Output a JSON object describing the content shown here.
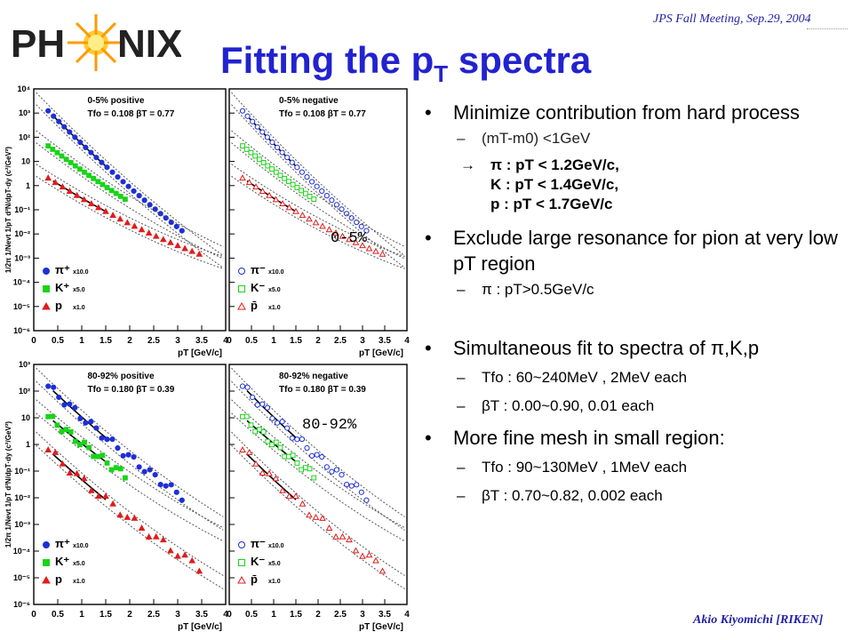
{
  "header": {
    "logo_text": "PHENIX",
    "conference": "JPS Fall Meeting, Sep.29, 2004",
    "title_main": "Fitting the p",
    "title_sub": "T",
    "title_tail": " spectra"
  },
  "footer": {
    "author": "Akio Kiyomichi [RIKEN]"
  },
  "bullets": {
    "b1": "Minimize contribution from hard process",
    "b1_sub1": "(mT-m0) <1GeV",
    "b1_arrow": "→",
    "b1_sub2_l1": "π : pT < 1.2GeV/c,",
    "b1_sub2_l2": "K : pT < 1.4GeV/c,",
    "b1_sub2_l3": "p : pT < 1.7GeV/c",
    "b2": "Exclude large resonance for pion at very low pT region",
    "b2_sub1": "π : pT>0.5GeV/c",
    "b3": "Simultaneous fit to spectra of π,K,p",
    "b3_sub1": "Tfo : 60~240MeV , 2MeV each",
    "b3_sub2": "βT : 0.00~0.90, 0.01 each",
    "b4": "More fine mesh in small region:",
    "b4_sub1": "Tfo : 90~130MeV , 1MeV each",
    "b4_sub2": "βT : 0.70~0.82, 0.002 each"
  },
  "plots": {
    "ylabel": "1/2π 1/Nevt 1/pT d²N/dpT·dy (c²/GeV²)",
    "xlabel": "pT [GeV/c]",
    "xticks": [
      "0",
      "0.5",
      "1",
      "1.5",
      "2",
      "2.5",
      "3",
      "3.5",
      "4"
    ],
    "yticks_top": [
      "10⁴",
      "10³",
      "10²",
      "10",
      "1",
      "10⁻¹",
      "10⁻²",
      "10⁻³",
      "10⁻⁴",
      "10⁻⁵",
      "10⁻⁶"
    ],
    "yticks_bottom": [
      "10³",
      "10²",
      "10",
      "1",
      "10⁻¹",
      "10⁻²",
      "10⁻³",
      "10⁻⁴",
      "10⁻⁵",
      "10⁻⁶"
    ],
    "label_0_5": "0-5%",
    "label_80_92": "80-92%",
    "panels": [
      {
        "head": "0-5%  positive",
        "params": "Tfo = 0.108   βT = 0.77",
        "legend": [
          {
            "sym": "π⁺",
            "scale": "x10.0"
          },
          {
            "sym": "K⁺",
            "scale": "x5.0"
          },
          {
            "sym": "p",
            "scale": "x1.0"
          }
        ]
      },
      {
        "head": "0-5%  negative",
        "params": "Tfo = 0.108   βT = 0.77",
        "legend": [
          {
            "sym": "π⁻",
            "scale": "x10.0"
          },
          {
            "sym": "K⁻",
            "scale": "x5.0"
          },
          {
            "sym": "p̄",
            "scale": "x1.0"
          }
        ]
      },
      {
        "head": "80-92%  positive",
        "params": "Tfo = 0.180   βT = 0.39",
        "legend": [
          {
            "sym": "π⁺",
            "scale": "x10.0"
          },
          {
            "sym": "K⁺",
            "scale": "x5.0"
          },
          {
            "sym": "p",
            "scale": "x1.0"
          }
        ]
      },
      {
        "head": "80-92%  negative",
        "params": "Tfo = 0.180   βT = 0.39",
        "legend": [
          {
            "sym": "π⁻",
            "scale": "x10.0"
          },
          {
            "sym": "K⁻",
            "scale": "x5.0"
          },
          {
            "sym": "p̄",
            "scale": "x1.0"
          }
        ]
      }
    ]
  },
  "colors": {
    "title": "#2222d0",
    "pion": "#1d2fd8",
    "kaon": "#18d418",
    "proton": "#e01c1c",
    "fit": "#000000"
  }
}
